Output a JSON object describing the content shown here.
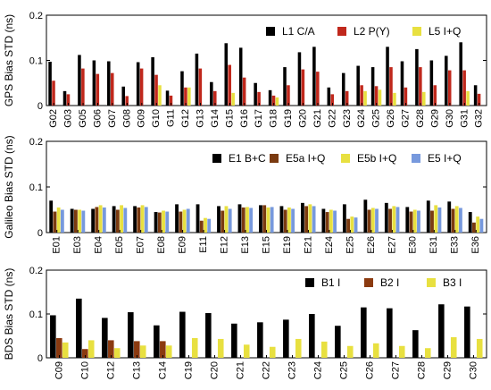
{
  "chart_data": [
    {
      "type": "bar",
      "ylabel": "GPS Bias STD (ns)",
      "ylim": [
        0,
        0.2
      ],
      "yticks": [
        "0",
        "0.1",
        "0.2"
      ],
      "grid": false,
      "legend_position": "top-right",
      "categories": [
        "G02",
        "G03",
        "G05",
        "G06",
        "G07",
        "G08",
        "G09",
        "G10",
        "G11",
        "G12",
        "G13",
        "G14",
        "G15",
        "G16",
        "G17",
        "G18",
        "G19",
        "G20",
        "G21",
        "G22",
        "G23",
        "G24",
        "G25",
        "G26",
        "G27",
        "G28",
        "G29",
        "G30",
        "G31",
        "G32"
      ],
      "series": [
        {
          "name": "L1 C/A",
          "color": "#000000",
          "values": [
            0.097,
            0.032,
            0.112,
            0.1,
            0.098,
            0.042,
            0.096,
            0.107,
            0.033,
            0.076,
            0.115,
            0.052,
            0.138,
            0.128,
            0.05,
            0.034,
            0.085,
            0.118,
            0.13,
            0.04,
            0.072,
            0.088,
            0.085,
            0.13,
            0.098,
            0.125,
            0.1,
            0.11,
            0.14,
            0.045
          ]
        },
        {
          "name": "L2 P(Y)",
          "color": "#c0281c",
          "values": [
            0.055,
            0.025,
            0.082,
            0.07,
            0.072,
            0.021,
            0.082,
            0.068,
            0.022,
            0.04,
            0.082,
            0.032,
            0.09,
            0.062,
            0.03,
            0.022,
            0.045,
            0.08,
            0.075,
            0.025,
            0.032,
            0.045,
            0.043,
            0.085,
            0.04,
            0.085,
            0.045,
            0.078,
            0.078,
            0.026
          ]
        },
        {
          "name": "L5 I+Q",
          "color": "#e8e040",
          "values": [
            0,
            0,
            0,
            0,
            0,
            0,
            0,
            0.045,
            0,
            0.04,
            0,
            0,
            0.028,
            0,
            0,
            0.018,
            0,
            0,
            0,
            0,
            0,
            0.032,
            0.035,
            0.028,
            0,
            0.03,
            0,
            0,
            0.032,
            0
          ]
        }
      ]
    },
    {
      "type": "bar",
      "ylabel": "Galileo Bias STD (ns)",
      "ylim": [
        0,
        0.2
      ],
      "yticks": [
        "0",
        "0.1",
        "0.2"
      ],
      "grid": false,
      "legend_position": "top-right",
      "categories": [
        "E01",
        "E03",
        "E04",
        "E05",
        "E07",
        "E08",
        "E09",
        "E11",
        "E12",
        "E13",
        "E15",
        "E19",
        "E21",
        "E24",
        "E25",
        "E26",
        "E27",
        "E30",
        "E31",
        "E33",
        "E36"
      ],
      "series": [
        {
          "name": "E1 B+C",
          "color": "#000000",
          "values": [
            0.07,
            0.052,
            0.052,
            0.058,
            0.058,
            0.045,
            0.062,
            0.062,
            0.058,
            0.062,
            0.06,
            0.058,
            0.065,
            0.052,
            0.062,
            0.072,
            0.065,
            0.056,
            0.07,
            0.068,
            0.045
          ]
        },
        {
          "name": "E5a I+Q",
          "color": "#7a3a10",
          "values": [
            0.046,
            0.05,
            0.056,
            0.05,
            0.055,
            0.044,
            0.046,
            0.026,
            0.048,
            0.055,
            0.06,
            0.05,
            0.058,
            0.045,
            0.03,
            0.05,
            0.052,
            0.046,
            0.048,
            0.052,
            0.022
          ]
        },
        {
          "name": "E5b I+Q",
          "color": "#e8e040",
          "values": [
            0.055,
            0.05,
            0.06,
            0.06,
            0.06,
            0.048,
            0.05,
            0.032,
            0.058,
            0.056,
            0.055,
            0.055,
            0.062,
            0.05,
            0.035,
            0.054,
            0.058,
            0.05,
            0.06,
            0.058,
            0.035
          ]
        },
        {
          "name": "E5 I+Q",
          "color": "#7799dd",
          "values": [
            0.05,
            0.048,
            0.055,
            0.054,
            0.056,
            0.046,
            0.052,
            0.03,
            0.052,
            0.054,
            0.056,
            0.052,
            0.058,
            0.048,
            0.033,
            0.052,
            0.056,
            0.048,
            0.055,
            0.054,
            0.03
          ]
        }
      ]
    },
    {
      "type": "bar",
      "ylabel": "BDS Bias STD (ns)",
      "ylim": [
        0,
        0.2
      ],
      "yticks": [
        "0",
        "0.1",
        "0.2"
      ],
      "grid": false,
      "legend_position": "top-right",
      "categories": [
        "C09",
        "C10",
        "C12",
        "C13",
        "C14",
        "C19",
        "C20",
        "C21",
        "C22",
        "C23",
        "C24",
        "C25",
        "C26",
        "C27",
        "C28",
        "C29",
        "C30"
      ],
      "series": [
        {
          "name": "B1 I",
          "color": "#000000",
          "values": [
            0.097,
            0.135,
            0.091,
            0.104,
            0.074,
            0.105,
            0.102,
            0.078,
            0.081,
            0.087,
            0.1,
            0.073,
            0.115,
            0.113,
            0.063,
            0.122,
            0.117
          ]
        },
        {
          "name": "B2 I",
          "color": "#8b3a10",
          "values": [
            0.045,
            0.02,
            0.04,
            0.038,
            0.038,
            0,
            0,
            0,
            0,
            0,
            0,
            0,
            0,
            0,
            0,
            0,
            0
          ]
        },
        {
          "name": "B3 I",
          "color": "#e8e040",
          "values": [
            0.035,
            0.04,
            0.022,
            0.028,
            0.028,
            0.045,
            0.043,
            0.03,
            0.025,
            0.043,
            0.037,
            0.027,
            0.033,
            0.027,
            0.022,
            0.047,
            0.043
          ]
        }
      ]
    }
  ]
}
